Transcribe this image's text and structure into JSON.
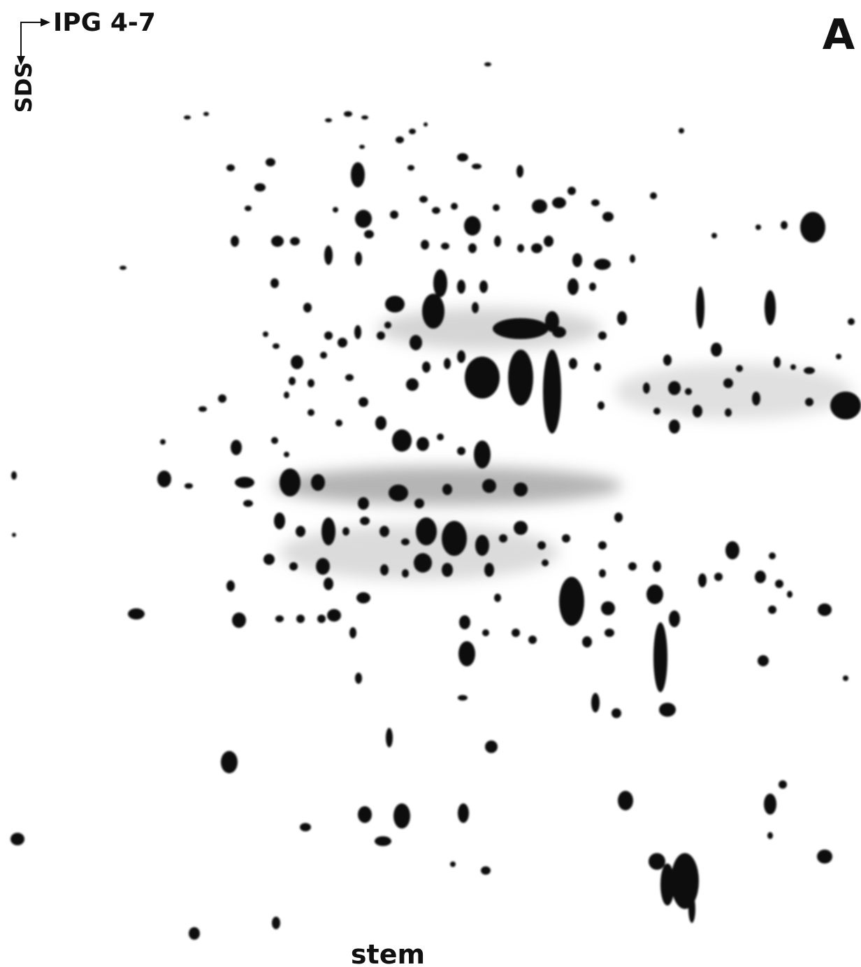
{
  "labels": {
    "ipg": "IPG 4-7",
    "sds": "SDS",
    "panel": "A",
    "tissue": "stem"
  }
}
